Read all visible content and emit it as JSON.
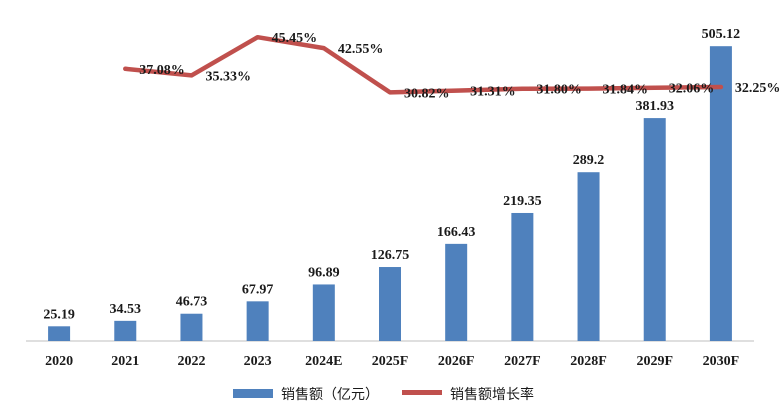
{
  "chart_data": {
    "type": "bar+line",
    "categories": [
      "2020",
      "2021",
      "2022",
      "2023",
      "2024E",
      "2025F",
      "2026F",
      "2027F",
      "2028F",
      "2029F",
      "2030F"
    ],
    "series": [
      {
        "name": "销售额（亿元）",
        "type": "bar",
        "color": "#4f81bd",
        "values": [
          25.19,
          34.53,
          46.73,
          67.97,
          96.89,
          126.75,
          166.43,
          219.35,
          289.2,
          381.93,
          505.12
        ],
        "labels": [
          "25.19",
          "34.53",
          "46.73",
          "67.97",
          "96.89",
          "126.75",
          "166.43",
          "219.35",
          "289.2",
          "381.93",
          "505.12"
        ]
      },
      {
        "name": "销售额增长率",
        "type": "line",
        "color": "#c0504d",
        "values": [
          null,
          37.08,
          35.33,
          45.45,
          42.55,
          30.82,
          31.31,
          31.8,
          31.84,
          32.06,
          32.25
        ],
        "labels": [
          "",
          "37.08%",
          "35.33%",
          "45.45%",
          "42.55%",
          "30.82%",
          "31.31%",
          "31.80%",
          "31.84%",
          "32.06%",
          "32.25%"
        ]
      }
    ],
    "bar_ylim": [
      0,
      550
    ],
    "line_ylim": [
      -35,
      50
    ],
    "grid": false,
    "legend_position": "bottom"
  }
}
